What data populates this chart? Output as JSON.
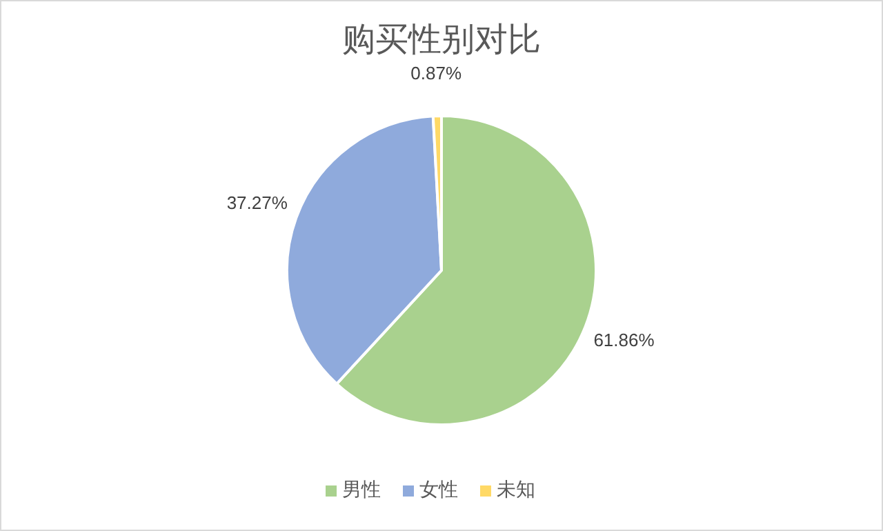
{
  "chart_data": {
    "type": "pie",
    "title": "购买性别对比",
    "categories": [
      "男性",
      "女性",
      "未知"
    ],
    "values": [
      61.86,
      37.27,
      0.87
    ],
    "colors": [
      "#a9d18e",
      "#8faadc",
      "#ffd966"
    ],
    "value_labels": [
      "61.86%",
      "37.27%",
      "0.87%"
    ],
    "legend": "bottom"
  }
}
